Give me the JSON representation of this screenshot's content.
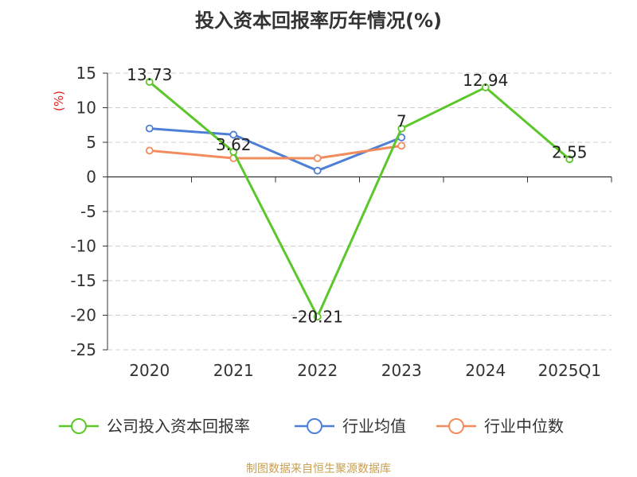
{
  "chart_data": {
    "type": "line",
    "title": "投入资本回报率历年情况(%)",
    "ylabel": "(%)",
    "categories": [
      "2020",
      "2021",
      "2022",
      "2023",
      "2024",
      "2025Q1"
    ],
    "ylim": [
      -25,
      15
    ],
    "yticks": [
      15,
      10,
      5,
      0,
      -5,
      -10,
      -15,
      -20,
      -25
    ],
    "grid": true,
    "legend_position": "bottom",
    "series": [
      {
        "name": "公司投入资本回报率",
        "color": "#5cc72a",
        "values": [
          13.73,
          3.62,
          -20.21,
          7,
          12.94,
          2.55
        ],
        "labels": [
          "13.73",
          "3.62",
          "-20.21",
          "7",
          "12.94",
          "2.55"
        ]
      },
      {
        "name": "行业均值",
        "color": "#4e7fd8",
        "values": [
          7.0,
          6.1,
          0.9,
          5.7,
          null,
          null
        ]
      },
      {
        "name": "行业中位数",
        "color": "#f28c5c",
        "values": [
          3.8,
          2.7,
          2.7,
          4.5,
          null,
          null
        ]
      }
    ]
  },
  "source": "制图数据来自恒生聚源数据库"
}
